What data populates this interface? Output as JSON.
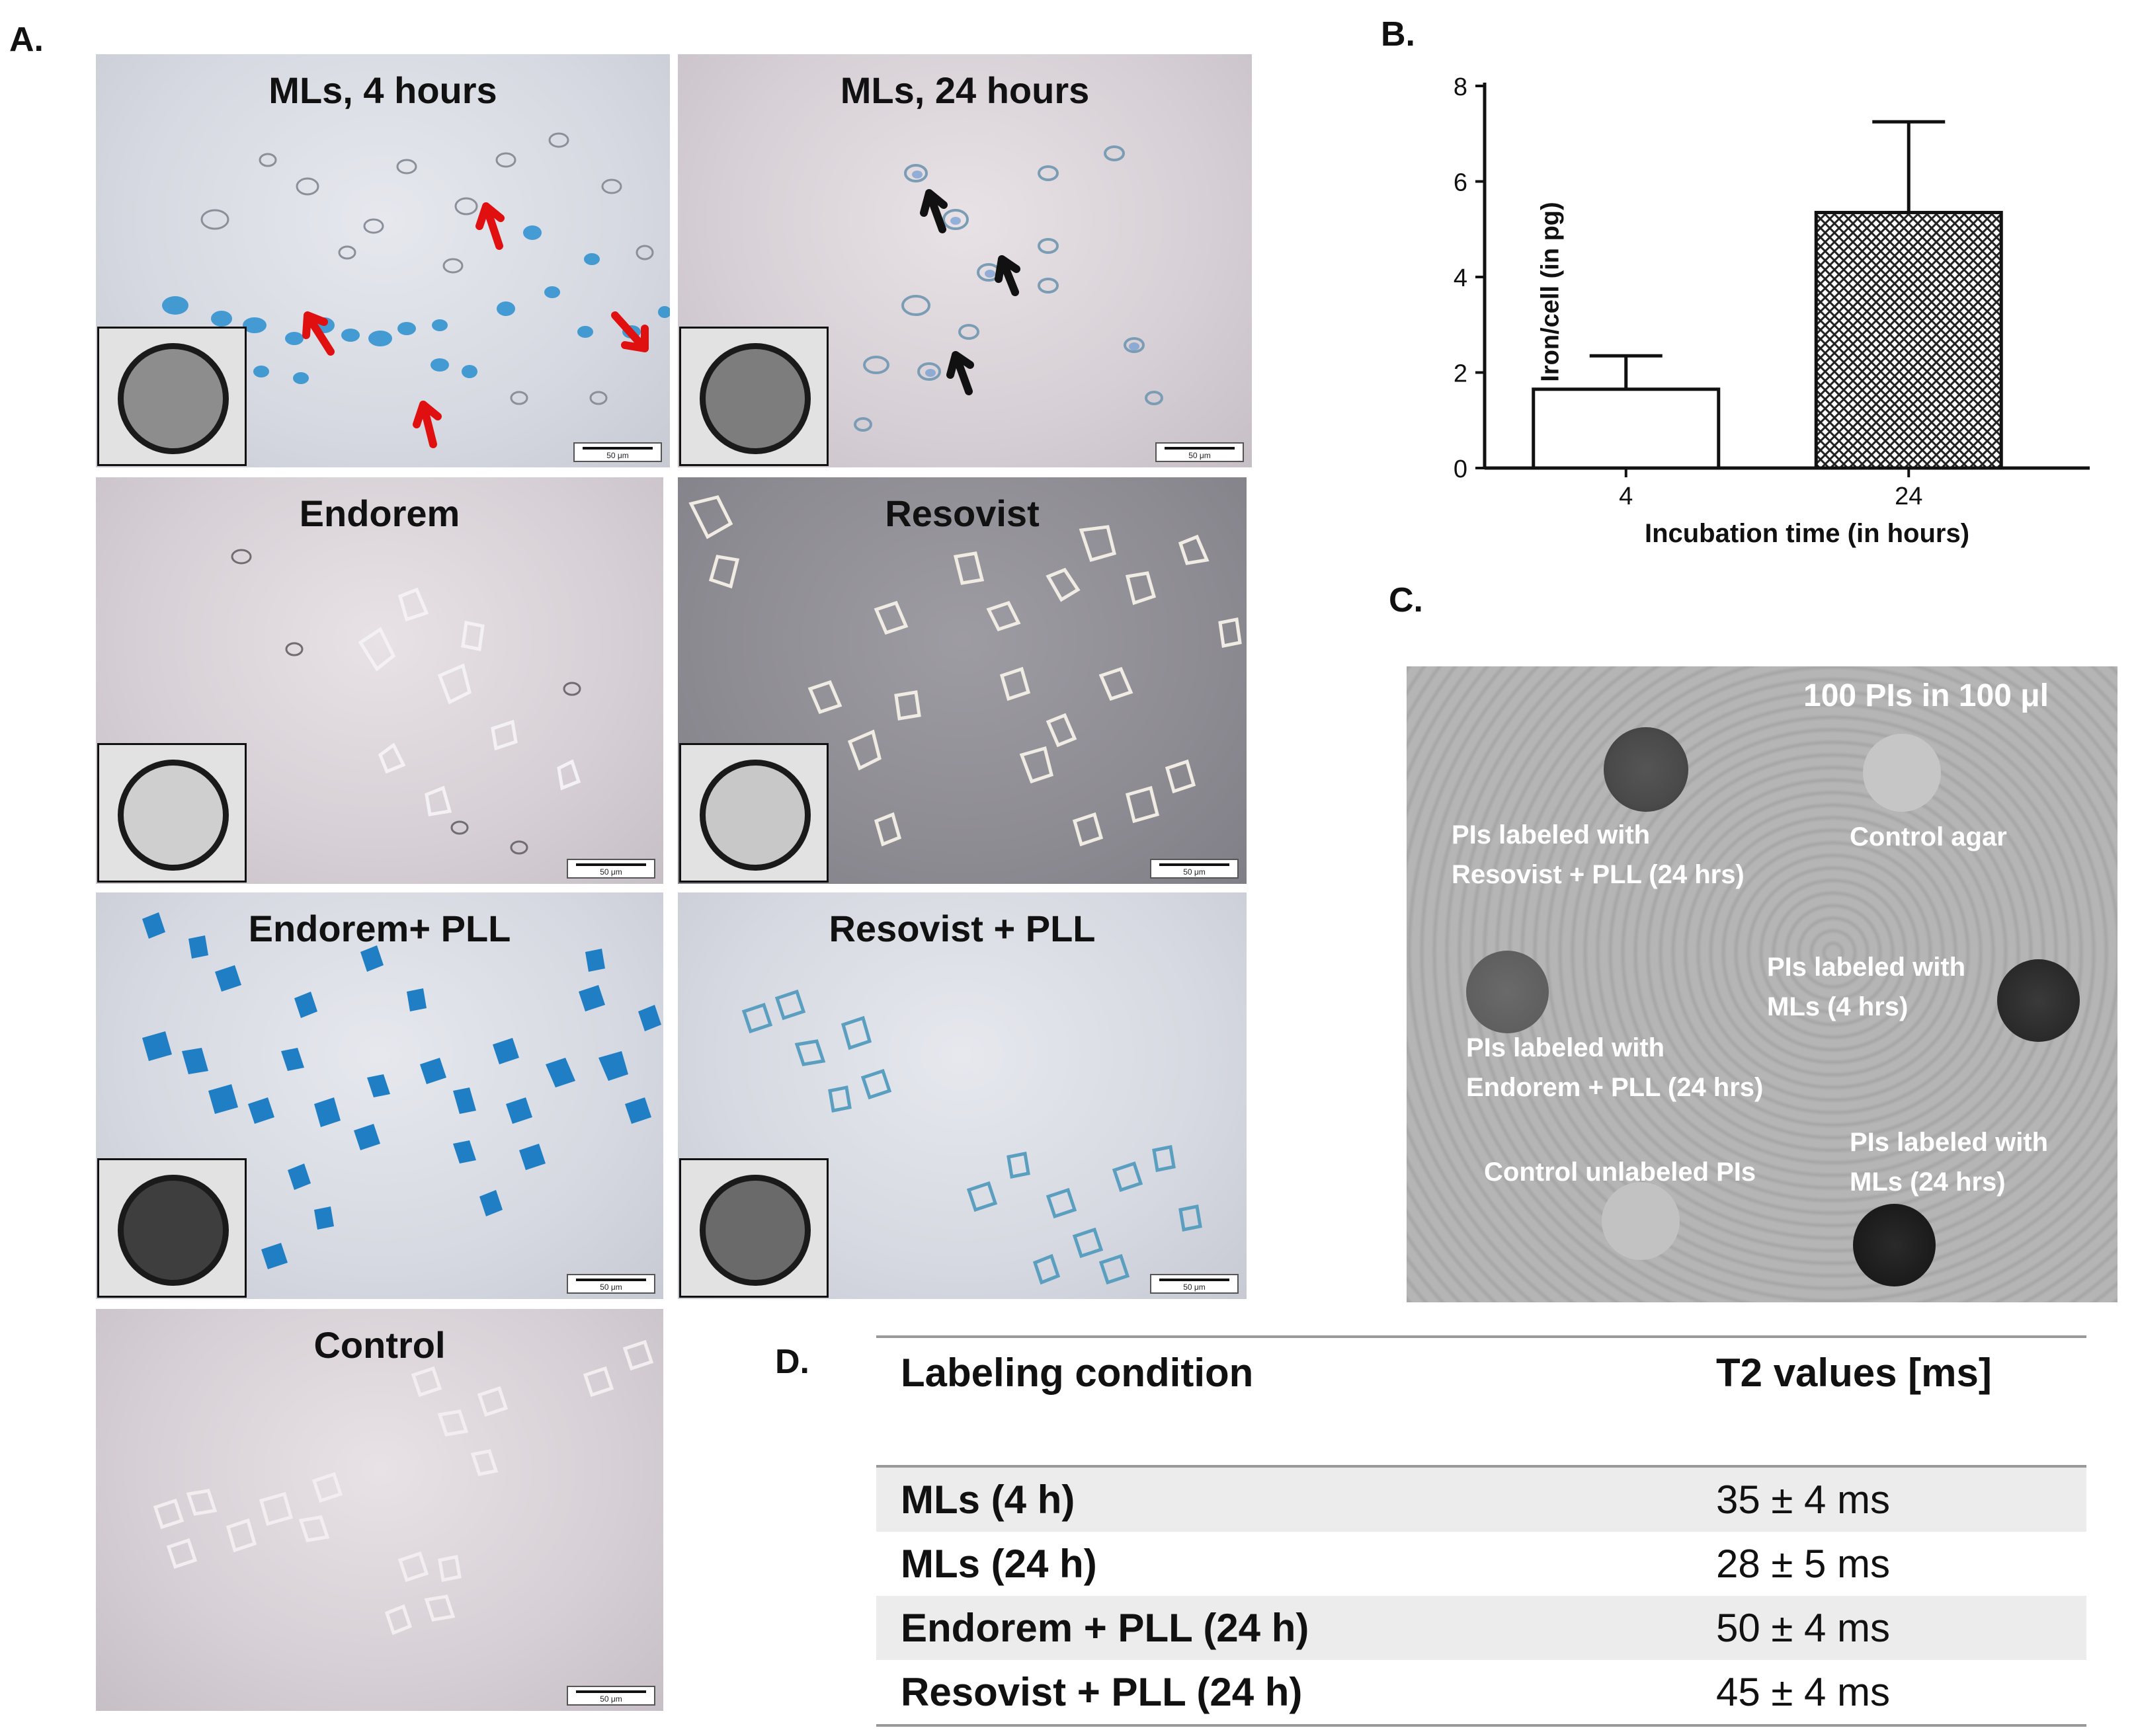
{
  "panel_labels": {
    "a": "A.",
    "b": "B.",
    "c": "C.",
    "d": "D."
  },
  "micrographs": [
    {
      "title": "MLs, 4 hours",
      "scale": "50 μm"
    },
    {
      "title": "MLs, 24 hours",
      "scale": "50 μm"
    },
    {
      "title": "Endorem",
      "scale": "50 μm"
    },
    {
      "title": "Resovist",
      "scale": "50 μm"
    },
    {
      "title": "Endorem+ PLL",
      "scale": "50 μm"
    },
    {
      "title": "Resovist + PLL",
      "scale": "50 μm"
    },
    {
      "title": "Control",
      "scale": "50 μm"
    }
  ],
  "chart_data": {
    "type": "bar",
    "categories": [
      "4",
      "24"
    ],
    "values": [
      1.65,
      5.35
    ],
    "errors": [
      0.7,
      1.9
    ],
    "xlabel": "Incubation time (in hours)",
    "ylabel": "Iron/cell (in pg)",
    "ylim": [
      0,
      8
    ],
    "yticks": [
      "0",
      "2",
      "4",
      "6",
      "8"
    ],
    "bar_fills": [
      "white",
      "crosshatch"
    ],
    "grid": false
  },
  "mri": {
    "title": "100 PIs in 100 μl",
    "labels": [
      "PIs labeled with\nResovist + PLL (24 hrs)",
      "Control agar",
      "PIs labeled with\nMLs (4 hrs)",
      "PIs labeled with\nEndorem + PLL (24 hrs)",
      "PIs labeled with\nMLs (24 hrs)",
      "Control unlabeled PIs"
    ]
  },
  "table": {
    "headers": [
      "Labeling condition",
      "T2 values [ms]"
    ],
    "rows": [
      [
        "MLs (4 h)",
        "35 ± 4 ms"
      ],
      [
        "MLs (24 h)",
        "28 ± 5 ms"
      ],
      [
        "Endorem + PLL (24 h)",
        "50 ± 4 ms"
      ],
      [
        "Resovist + PLL (24 h)",
        "45 ± 4 ms"
      ]
    ]
  }
}
